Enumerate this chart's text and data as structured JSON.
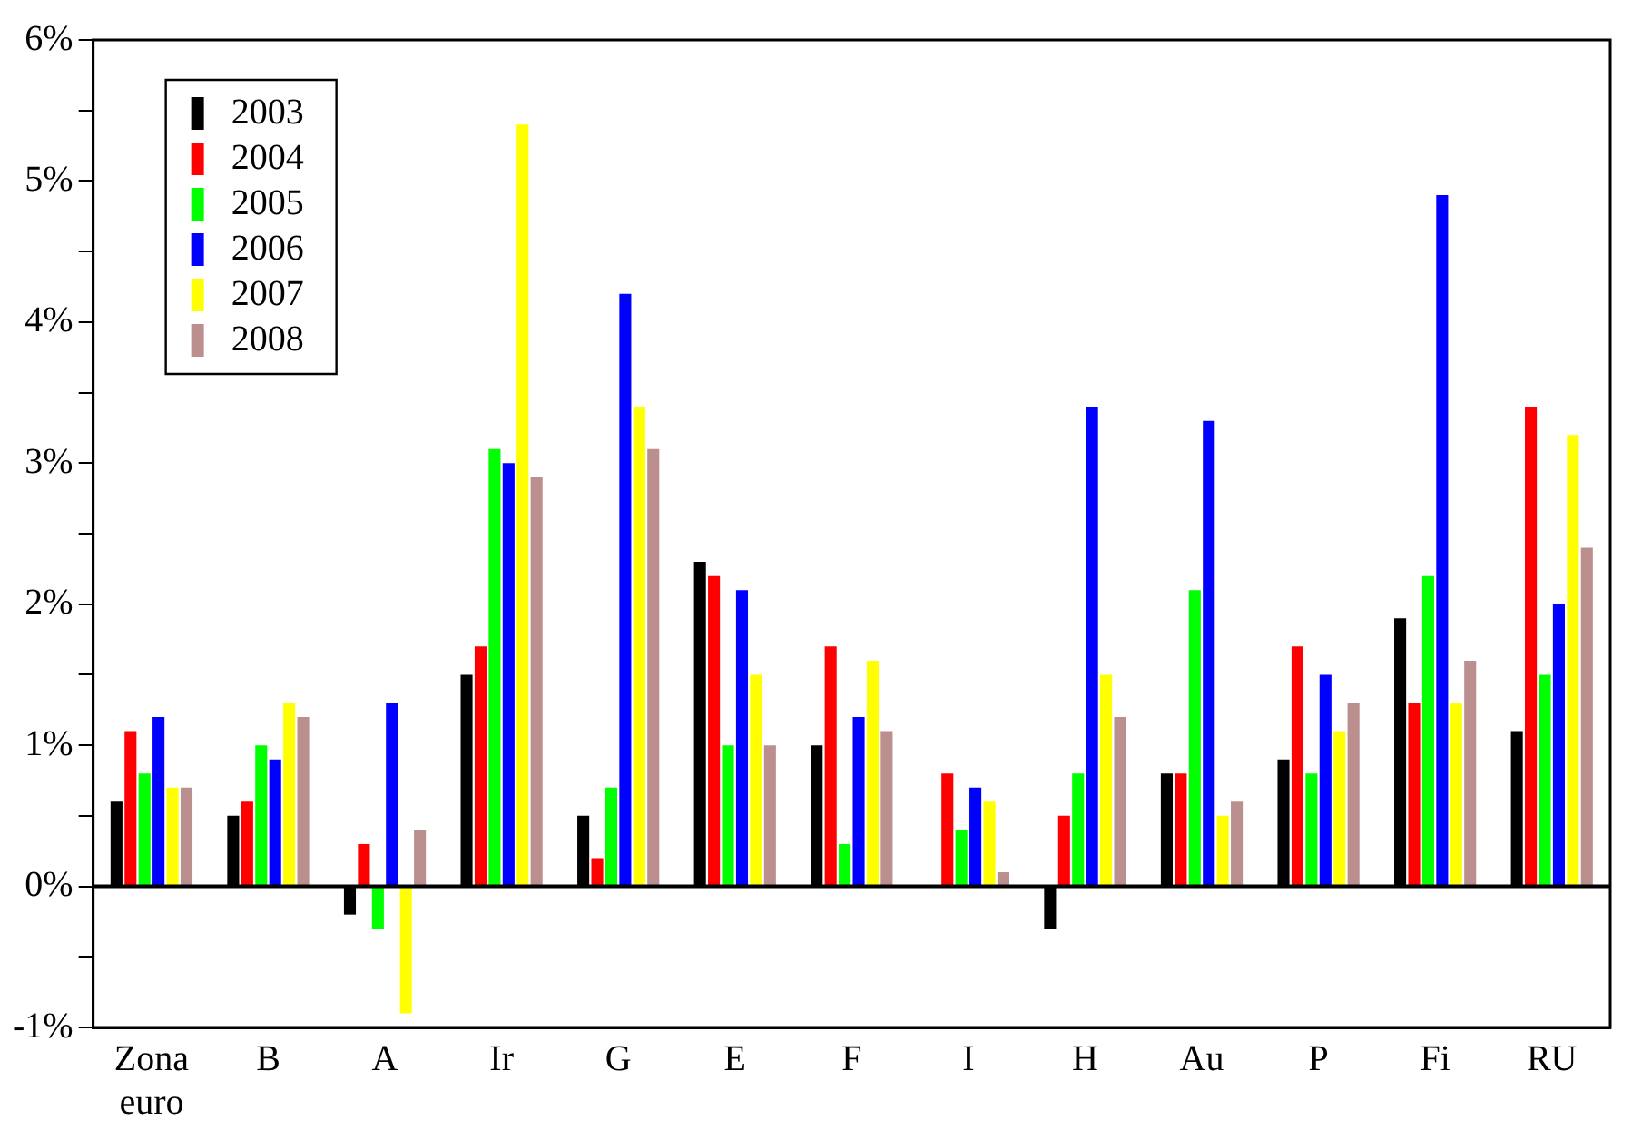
{
  "chart_data": {
    "type": "bar",
    "categories": [
      "Zona euro",
      "B",
      "A",
      "Ir",
      "G",
      "E",
      "F",
      "I",
      "H",
      "Au",
      "P",
      "Fi",
      "RU"
    ],
    "series": [
      {
        "name": "2003",
        "color": "#000000",
        "values": [
          0.6,
          0.5,
          -0.2,
          1.5,
          0.5,
          2.3,
          1.0,
          0,
          -0.3,
          0.8,
          0.9,
          1.9,
          1.1
        ]
      },
      {
        "name": "2004",
        "color": "#ff0000",
        "values": [
          1.1,
          0.6,
          0.3,
          1.7,
          0.2,
          2.2,
          1.7,
          0.8,
          0.5,
          0.8,
          1.7,
          1.3,
          3.4
        ]
      },
      {
        "name": "2005",
        "color": "#00ff00",
        "values": [
          0.8,
          1.0,
          -0.3,
          3.1,
          0.7,
          1.0,
          0.3,
          0.4,
          0.8,
          2.1,
          0.8,
          2.2,
          1.5
        ]
      },
      {
        "name": "2006",
        "color": "#0000ff",
        "values": [
          1.2,
          0.9,
          1.3,
          3.0,
          4.2,
          2.1,
          1.2,
          0.7,
          3.4,
          3.3,
          1.5,
          4.9,
          2.0
        ]
      },
      {
        "name": "2007",
        "color": "#ffff00",
        "values": [
          0.7,
          1.3,
          -0.9,
          5.4,
          3.4,
          1.5,
          1.6,
          0.6,
          1.5,
          0.5,
          1.1,
          1.3,
          3.2
        ]
      },
      {
        "name": "2008",
        "color": "#bc8f8f",
        "values": [
          0.7,
          1.2,
          0.4,
          2.9,
          3.1,
          1.0,
          1.1,
          0.1,
          1.2,
          0.6,
          1.3,
          1.6,
          2.4
        ]
      }
    ],
    "ylim": [
      -1,
      6
    ],
    "yticks": [
      {
        "value": -1,
        "label": "-1%"
      },
      {
        "value": -0.5,
        "label": null
      },
      {
        "value": 0,
        "label": "0%"
      },
      {
        "value": 0.5,
        "label": null
      },
      {
        "value": 1,
        "label": "1%"
      },
      {
        "value": 1.5,
        "label": null
      },
      {
        "value": 2,
        "label": "2%"
      },
      {
        "value": 2.5,
        "label": null
      },
      {
        "value": 3,
        "label": "3%"
      },
      {
        "value": 3.5,
        "label": null
      },
      {
        "value": 4,
        "label": "4%"
      },
      {
        "value": 4.5,
        "label": null
      },
      {
        "value": 5,
        "label": "5%"
      },
      {
        "value": 5.5,
        "label": null
      },
      {
        "value": 6,
        "label": "6%"
      }
    ],
    "ref_lines": [
      {
        "axis": "y",
        "value": 0,
        "color": "#000000"
      }
    ],
    "grid": false,
    "legend": "top left"
  }
}
